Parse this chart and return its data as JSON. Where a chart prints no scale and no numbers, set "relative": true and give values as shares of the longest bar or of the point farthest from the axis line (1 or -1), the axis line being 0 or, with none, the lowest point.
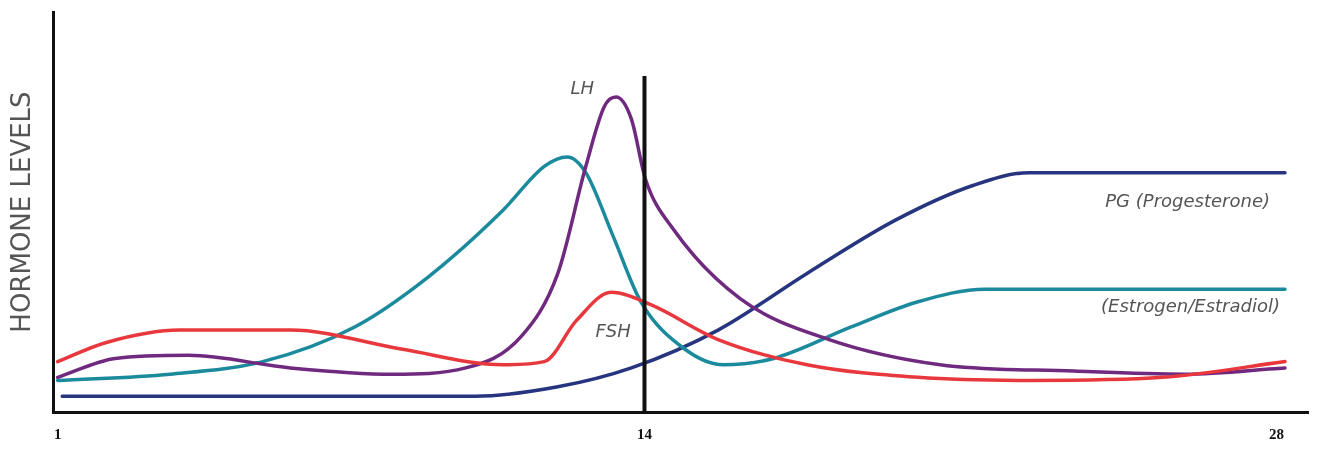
{
  "chart_data": {
    "type": "line",
    "ylabel": "HORMONE LEVELS",
    "relative": true,
    "xlim": [
      0.9,
      28.7
    ],
    "xticks": [
      1,
      14,
      28
    ],
    "grid": false,
    "legend": false,
    "marker": "none",
    "line_style": "solid",
    "ref_lines": [
      {
        "axis": "x",
        "value": 14,
        "color": "#111111"
      }
    ],
    "series": [
      {
        "name": "FSH",
        "color": "#e8383d",
        "x": [
          1.0,
          2.06,
          3.7,
          6.15,
          8.61,
          10.86,
          11.78,
          12.49,
          13.26,
          14.15,
          15.63,
          17.6,
          20.06,
          22.52,
          25.48,
          28.19
        ],
        "values": [
          0.16,
          0.22,
          0.26,
          0.26,
          0.2,
          0.15,
          0.16,
          0.29,
          0.38,
          0.34,
          0.23,
          0.15,
          0.11,
          0.1,
          0.11,
          0.16
        ]
      },
      {
        "name": "LH",
        "color": "#6f2a7f",
        "x": [
          1.0,
          2.27,
          3.9,
          6.15,
          8.4,
          10.04,
          11.27,
          12.08,
          12.7,
          13.11,
          13.37,
          13.71,
          14.02,
          14.64,
          16.12,
          18.09,
          20.55,
          23.51,
          25.97,
          28.19
        ],
        "values": [
          0.11,
          0.17,
          0.18,
          0.14,
          0.12,
          0.14,
          0.24,
          0.44,
          0.78,
          0.97,
          1.0,
          0.93,
          0.74,
          0.58,
          0.36,
          0.23,
          0.15,
          0.13,
          0.12,
          0.14
        ]
      },
      {
        "name": "(Estrogen/Estradiol)",
        "color": "#1b8a9c",
        "x": [
          1.0,
          3.49,
          5.54,
          7.58,
          9.22,
          10.86,
          11.78,
          12.29,
          12.7,
          13.3,
          13.92,
          14.89,
          15.75,
          16.86,
          18.58,
          20.06,
          21.54,
          24.74,
          28.19
        ],
        "values": [
          0.1,
          0.12,
          0.16,
          0.27,
          0.43,
          0.64,
          0.78,
          0.81,
          0.76,
          0.56,
          0.35,
          0.2,
          0.15,
          0.17,
          0.27,
          0.35,
          0.39,
          0.39,
          0.39
        ]
      },
      {
        "name": "PG (Progesterone)",
        "color": "#273580",
        "x": [
          1.1,
          5.54,
          10.24,
          12.08,
          13.71,
          15.63,
          17.6,
          19.57,
          21.29,
          22.52,
          28.19
        ],
        "values": [
          0.05,
          0.05,
          0.05,
          0.08,
          0.14,
          0.26,
          0.44,
          0.61,
          0.72,
          0.76,
          0.76
        ]
      }
    ]
  }
}
